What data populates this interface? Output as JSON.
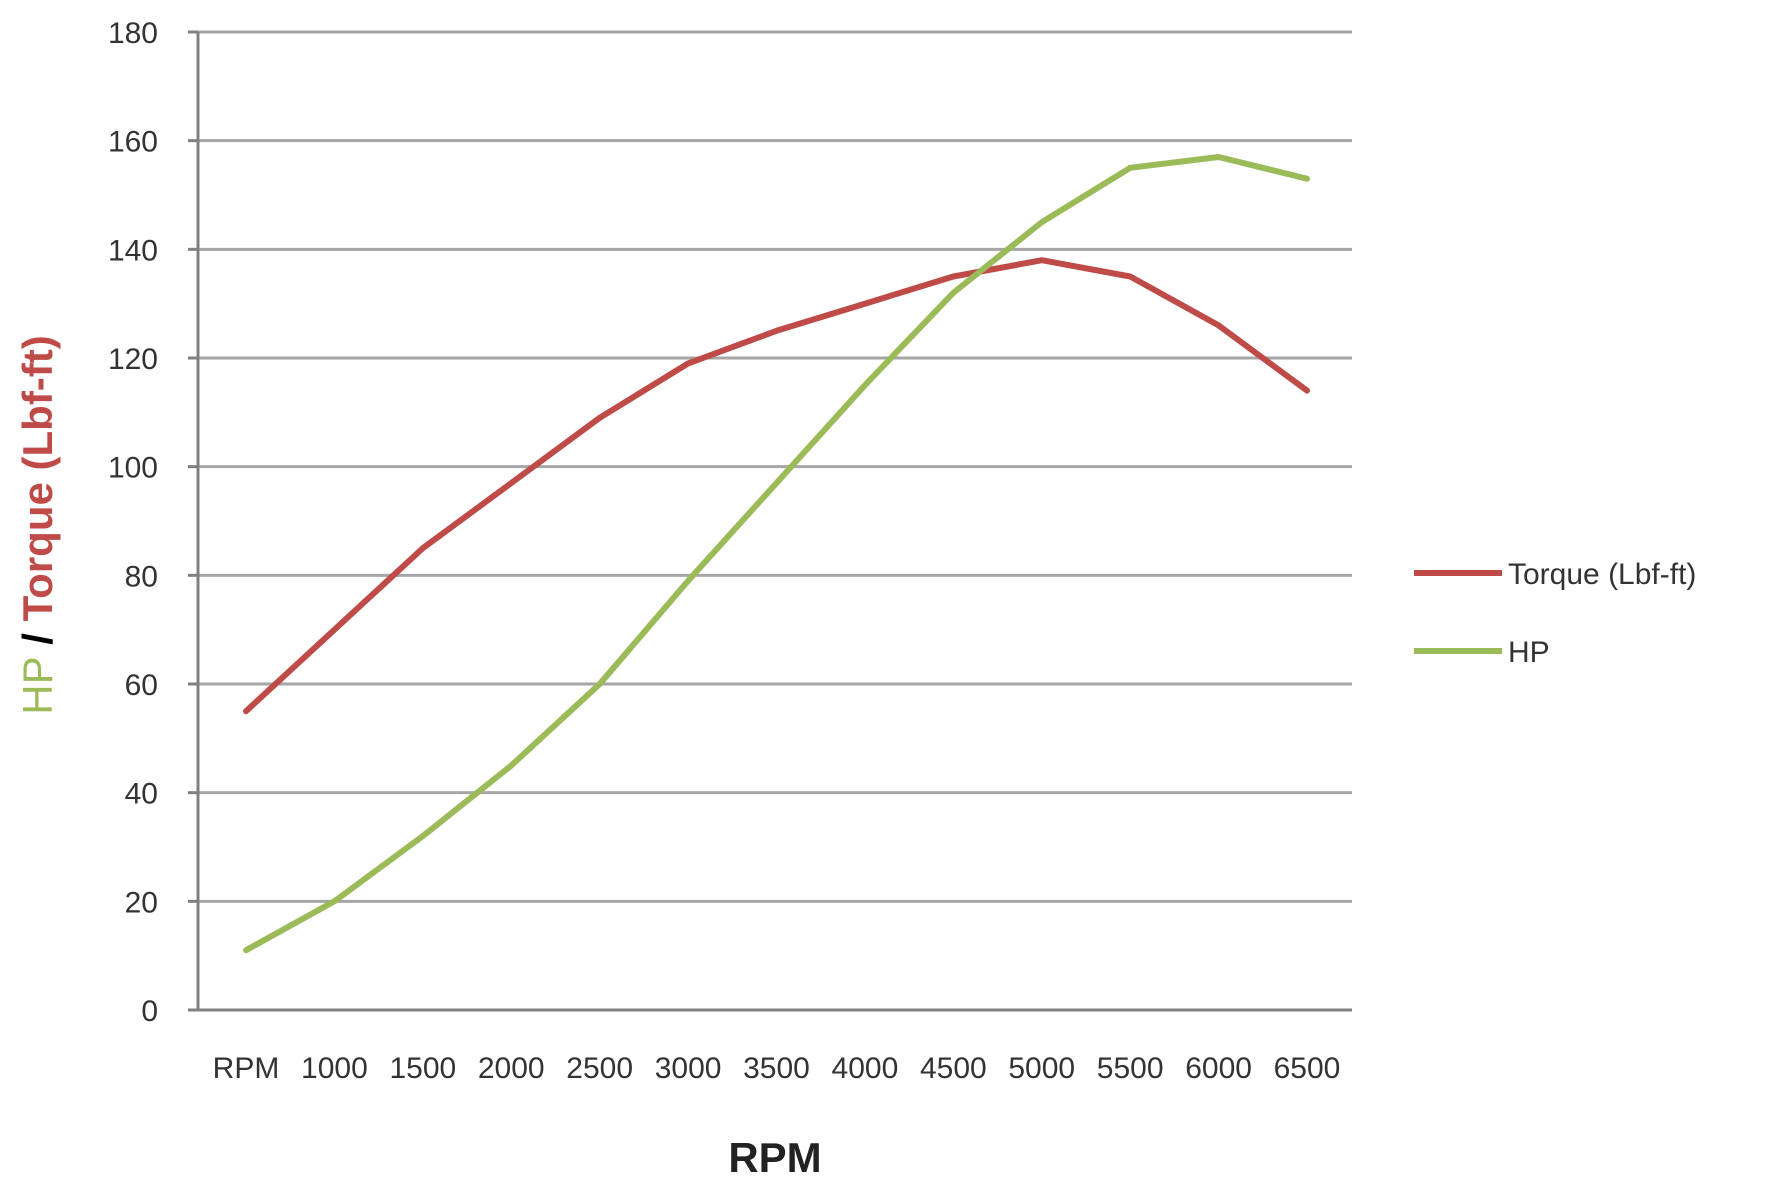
{
  "chart_data": {
    "type": "line",
    "categories": [
      "RPM",
      "1000",
      "1500",
      "2000",
      "2500",
      "3000",
      "3500",
      "4000",
      "4500",
      "5000",
      "5500",
      "6000",
      "6500"
    ],
    "series": [
      {
        "name": "Torque (Lbf-ft)",
        "color": "#be4b48",
        "values": [
          55,
          70,
          85,
          97,
          109,
          119,
          125,
          130,
          135,
          138,
          135,
          126,
          114
        ]
      },
      {
        "name": "HP",
        "color": "#9bbb59",
        "values": [
          11,
          20,
          32,
          45,
          60,
          79,
          97,
          115,
          132,
          145,
          155,
          157,
          153
        ]
      }
    ],
    "xlabel": "RPM",
    "ylabel_parts": [
      {
        "text": "HP",
        "color": "#9bbb59"
      },
      {
        "text": " / ",
        "color": "#000000"
      },
      {
        "text": "Torque (Lbf-ft)",
        "color": "#be4b48"
      }
    ],
    "ylim": [
      0,
      180
    ],
    "yticks": [
      0,
      20,
      40,
      60,
      80,
      100,
      120,
      140,
      160,
      180
    ],
    "grid": true,
    "legend_position": "right"
  }
}
